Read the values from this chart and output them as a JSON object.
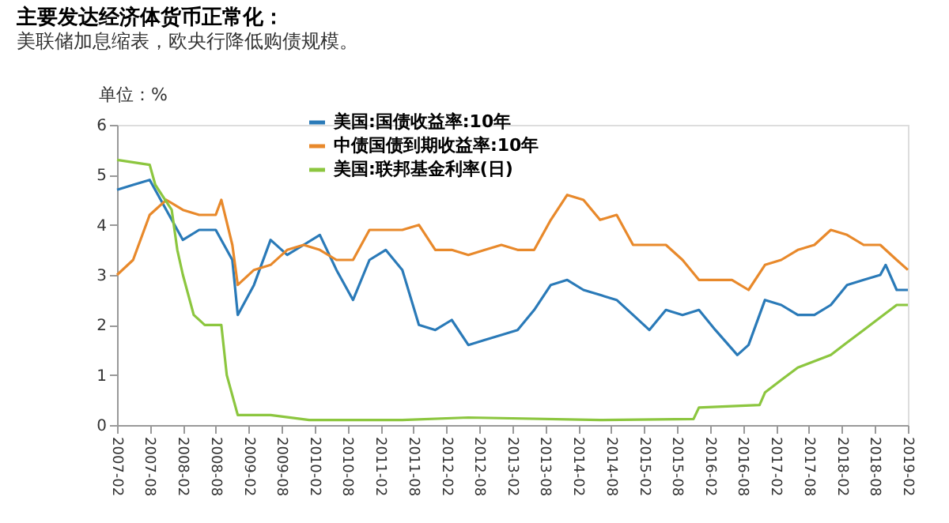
{
  "chart_data": {
    "type": "line",
    "title": "主要发达经济体货币正常化：",
    "subtitle": "美联储加息缩表，欧央行降低购债规模。",
    "ylabel": "单位：%",
    "series": [
      {
        "name": "美国:国债收益率:10年",
        "color": "#2a7ab8",
        "x": [
          "2007-02",
          "2007-05",
          "2007-08",
          "2007-11",
          "2008-02",
          "2008-05",
          "2008-08",
          "2008-11",
          "2008-12",
          "2009-03",
          "2009-06",
          "2009-09",
          "2009-12",
          "2010-03",
          "2010-06",
          "2010-09",
          "2010-12",
          "2011-03",
          "2011-06",
          "2011-09",
          "2011-12",
          "2012-03",
          "2012-06",
          "2012-09",
          "2012-12",
          "2013-03",
          "2013-06",
          "2013-09",
          "2013-12",
          "2014-03",
          "2014-06",
          "2014-09",
          "2014-12",
          "2015-03",
          "2015-06",
          "2015-09",
          "2015-12",
          "2016-03",
          "2016-07",
          "2016-09",
          "2016-12",
          "2017-03",
          "2017-06",
          "2017-09",
          "2017-12",
          "2018-03",
          "2018-06",
          "2018-09",
          "2018-10",
          "2018-12",
          "2019-02"
        ],
        "values": [
          4.7,
          4.8,
          4.9,
          4.3,
          3.7,
          3.9,
          3.9,
          3.3,
          2.2,
          2.8,
          3.7,
          3.4,
          3.6,
          3.8,
          3.1,
          2.5,
          3.3,
          3.5,
          3.1,
          2.0,
          1.9,
          2.1,
          1.6,
          1.7,
          1.8,
          1.9,
          2.3,
          2.8,
          2.9,
          2.7,
          2.6,
          2.5,
          2.2,
          1.9,
          2.3,
          2.2,
          2.3,
          1.9,
          1.4,
          1.6,
          2.5,
          2.4,
          2.2,
          2.2,
          2.4,
          2.8,
          2.9,
          3.0,
          3.2,
          2.7,
          2.7
        ]
      },
      {
        "name": "中债国债到期收益率:10年",
        "color": "#e8892b",
        "x": [
          "2007-02",
          "2007-05",
          "2007-08",
          "2007-11",
          "2008-02",
          "2008-05",
          "2008-08",
          "2008-09",
          "2008-11",
          "2008-12",
          "2009-03",
          "2009-06",
          "2009-09",
          "2009-12",
          "2010-03",
          "2010-06",
          "2010-09",
          "2010-12",
          "2011-03",
          "2011-06",
          "2011-09",
          "2011-12",
          "2012-03",
          "2012-06",
          "2012-09",
          "2012-12",
          "2013-03",
          "2013-06",
          "2013-09",
          "2013-12",
          "2014-03",
          "2014-06",
          "2014-09",
          "2014-12",
          "2015-03",
          "2015-06",
          "2015-09",
          "2015-12",
          "2016-03",
          "2016-06",
          "2016-09",
          "2016-12",
          "2017-03",
          "2017-06",
          "2017-09",
          "2017-12",
          "2018-03",
          "2018-06",
          "2018-09",
          "2018-12",
          "2019-02"
        ],
        "values": [
          3.0,
          3.3,
          4.2,
          4.5,
          4.3,
          4.2,
          4.2,
          4.5,
          3.6,
          2.8,
          3.1,
          3.2,
          3.5,
          3.6,
          3.5,
          3.3,
          3.3,
          3.9,
          3.9,
          3.9,
          4.0,
          3.5,
          3.5,
          3.4,
          3.5,
          3.6,
          3.5,
          3.5,
          4.1,
          4.6,
          4.5,
          4.1,
          4.2,
          3.6,
          3.6,
          3.6,
          3.3,
          2.9,
          2.9,
          2.9,
          2.7,
          3.2,
          3.3,
          3.5,
          3.6,
          3.9,
          3.8,
          3.6,
          3.6,
          3.3,
          3.1
        ]
      },
      {
        "name": "美国:联邦基金利率(日)",
        "color": "#8cc63f",
        "x": [
          "2007-02",
          "2007-08",
          "2007-09",
          "2007-12",
          "2008-01",
          "2008-02",
          "2008-04",
          "2008-06",
          "2008-09",
          "2008-10",
          "2008-12",
          "2009-03",
          "2009-06",
          "2010-01",
          "2011-06",
          "2012-06",
          "2014-06",
          "2015-11",
          "2015-12",
          "2016-11",
          "2016-12",
          "2017-03",
          "2017-06",
          "2017-12",
          "2018-03",
          "2018-06",
          "2018-09",
          "2018-12",
          "2019-02"
        ],
        "values": [
          5.3,
          5.2,
          4.8,
          4.3,
          3.5,
          3.0,
          2.2,
          2.0,
          2.0,
          1.0,
          0.2,
          0.2,
          0.2,
          0.1,
          0.1,
          0.15,
          0.1,
          0.12,
          0.35,
          0.4,
          0.65,
          0.9,
          1.15,
          1.4,
          1.65,
          1.9,
          2.15,
          2.4,
          2.4
        ]
      }
    ],
    "xlim": [
      "2007-02",
      "2019-02"
    ],
    "xticks": [
      {
        "value": "2007-02",
        "label": "2007-02"
      },
      {
        "value": "2007-08",
        "label": "2007-08"
      },
      {
        "value": "2008-02",
        "label": "2008-02"
      },
      {
        "value": "2008-08",
        "label": "2008-08"
      },
      {
        "value": "2009-02",
        "label": "2009-02"
      },
      {
        "value": "2009-08",
        "label": "2009-08"
      },
      {
        "value": "2010-02",
        "label": "2010-02"
      },
      {
        "value": "2010-08",
        "label": "2010-08"
      },
      {
        "value": "2011-02",
        "label": "2011-02"
      },
      {
        "value": "2011-08",
        "label": "2011-08"
      },
      {
        "value": "2012-02",
        "label": "2012-02"
      },
      {
        "value": "2012-08",
        "label": "2012-08"
      },
      {
        "value": "2013-02",
        "label": "2013-02"
      },
      {
        "value": "2013-08",
        "label": "2013-08"
      },
      {
        "value": "2014-02",
        "label": "2014-02"
      },
      {
        "value": "2014-08",
        "label": "2014-08"
      },
      {
        "value": "2015-02",
        "label": "2015-02"
      },
      {
        "value": "2015-08",
        "label": "2015-08"
      },
      {
        "value": "2016-02",
        "label": "2016-02"
      },
      {
        "value": "2016-08",
        "label": "2016-08"
      },
      {
        "value": "2017-02",
        "label": "2017-02"
      },
      {
        "value": "2017-08",
        "label": "2017-08"
      },
      {
        "value": "2018-02",
        "label": "2018-02"
      },
      {
        "value": "2018-08",
        "label": "2018-08"
      },
      {
        "value": "2019-02",
        "label": "2019-02"
      }
    ],
    "ylim": [
      0,
      6
    ],
    "yticks": [
      0,
      1,
      2,
      3,
      4,
      5,
      6
    ],
    "grid": false,
    "legend": "top",
    "line_style": "solid",
    "marker": "none"
  }
}
